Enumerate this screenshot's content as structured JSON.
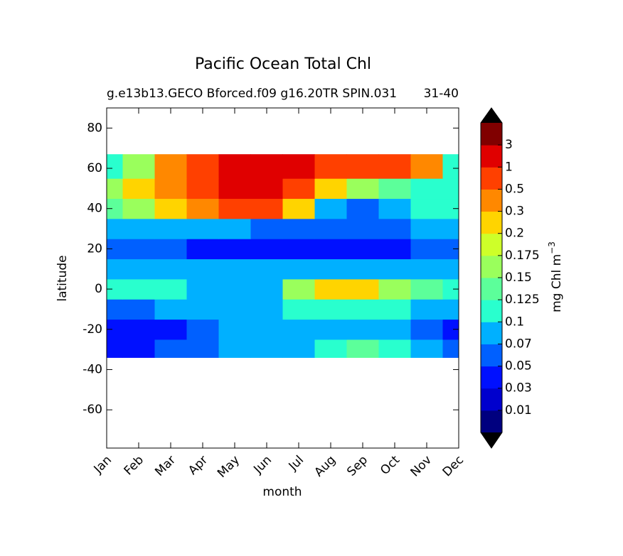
{
  "chart_data": {
    "type": "heatmap",
    "title": "Pacific Ocean Total Chl",
    "subtitle_left": "g.e13b13.GECO Bforced.f09 g16.20TR SPIN.031",
    "subtitle_right": "31-40",
    "x_label": "month",
    "y_label": "latitude",
    "categories": [
      "Jan",
      "Feb",
      "Mar",
      "Apr",
      "May",
      "Jun",
      "Jul",
      "Aug",
      "Sep",
      "Oct",
      "Nov",
      "Dec"
    ],
    "y_edges": [
      -34,
      -25,
      -15,
      -5,
      5,
      15,
      25,
      35,
      45,
      55,
      67
    ],
    "values": [
      [
        0.04,
        0.04,
        0.05,
        0.06,
        0.08,
        0.08,
        0.08,
        0.11,
        0.13,
        0.11,
        0.08,
        0.06
      ],
      [
        0.04,
        0.04,
        0.04,
        0.06,
        0.08,
        0.08,
        0.08,
        0.08,
        0.08,
        0.08,
        0.06,
        0.04
      ],
      [
        0.06,
        0.06,
        0.07,
        0.08,
        0.09,
        0.09,
        0.1,
        0.11,
        0.11,
        0.1,
        0.09,
        0.08
      ],
      [
        0.11,
        0.11,
        0.1,
        0.09,
        0.09,
        0.09,
        0.15,
        0.2,
        0.2,
        0.15,
        0.13,
        0.12
      ],
      [
        0.08,
        0.08,
        0.09,
        0.09,
        0.08,
        0.08,
        0.08,
        0.08,
        0.08,
        0.08,
        0.08,
        0.08
      ],
      [
        0.06,
        0.06,
        0.06,
        0.04,
        0.04,
        0.04,
        0.04,
        0.04,
        0.04,
        0.04,
        0.05,
        0.06
      ],
      [
        0.08,
        0.08,
        0.09,
        0.08,
        0.08,
        0.06,
        0.06,
        0.06,
        0.06,
        0.06,
        0.07,
        0.08
      ],
      [
        0.13,
        0.15,
        0.2,
        0.4,
        0.6,
        0.5,
        0.2,
        0.08,
        0.06,
        0.08,
        0.1,
        0.1
      ],
      [
        0.15,
        0.2,
        0.3,
        0.5,
        1.2,
        1.2,
        0.6,
        0.2,
        0.15,
        0.125,
        0.11,
        0.11
      ],
      [
        0.1,
        0.15,
        0.3,
        0.5,
        1.5,
        1.5,
        1.2,
        0.6,
        0.7,
        0.6,
        0.4,
        0.1
      ]
    ],
    "ylim": [
      -79,
      90
    ],
    "yticks": [
      80,
      60,
      40,
      20,
      0,
      -20,
      -40,
      -60
    ],
    "colorbar": {
      "label": "mg Chl m",
      "label_sup": "−3",
      "levels": [
        0.01,
        0.03,
        0.05,
        0.07,
        0.1,
        0.125,
        0.15,
        0.175,
        0.2,
        0.3,
        0.5,
        1,
        3
      ],
      "colors": [
        "#00007f",
        "#0000cd",
        "#0010ff",
        "#0060ff",
        "#00b0ff",
        "#29ffce",
        "#5cff9a",
        "#9aff5c",
        "#ceff29",
        "#ffd400",
        "#ff8800",
        "#ff4000",
        "#e00000",
        "#800000"
      ],
      "extend_color": "#000000"
    }
  }
}
